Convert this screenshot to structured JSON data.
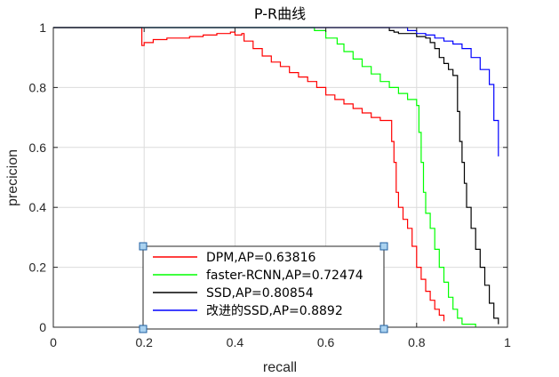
{
  "chart_data": {
    "type": "line",
    "title": "P-R曲线",
    "xlabel": "recall",
    "ylabel": "precicion",
    "xlim": [
      0,
      1
    ],
    "ylim": [
      0,
      1
    ],
    "xticks": [
      0,
      0.2,
      0.4,
      0.6,
      0.8,
      1
    ],
    "xtick_labels": [
      "0",
      "0.2",
      "0.4",
      "0.6",
      "0.8",
      "1"
    ],
    "yticks": [
      0,
      0.2,
      0.4,
      0.6,
      0.8,
      1
    ],
    "ytick_labels": [
      "0",
      "0.2",
      "0.4",
      "0.6",
      "0.8",
      "1"
    ],
    "grid": true,
    "legend_position": "bottom-center",
    "series": [
      {
        "name": "DPM,AP=0.63816",
        "color": "#ff0000",
        "points": [
          [
            0.0,
            1.0
          ],
          [
            0.195,
            1.0
          ],
          [
            0.195,
            0.94
          ],
          [
            0.2,
            0.94
          ],
          [
            0.2,
            0.95
          ],
          [
            0.22,
            0.95
          ],
          [
            0.22,
            0.96
          ],
          [
            0.25,
            0.96
          ],
          [
            0.25,
            0.965
          ],
          [
            0.3,
            0.965
          ],
          [
            0.3,
            0.97
          ],
          [
            0.33,
            0.97
          ],
          [
            0.33,
            0.975
          ],
          [
            0.36,
            0.975
          ],
          [
            0.36,
            0.98
          ],
          [
            0.39,
            0.98
          ],
          [
            0.39,
            0.985
          ],
          [
            0.4,
            0.985
          ],
          [
            0.4,
            0.975
          ],
          [
            0.415,
            0.975
          ],
          [
            0.415,
            0.98
          ],
          [
            0.42,
            0.98
          ],
          [
            0.42,
            0.955
          ],
          [
            0.44,
            0.955
          ],
          [
            0.44,
            0.93
          ],
          [
            0.46,
            0.93
          ],
          [
            0.46,
            0.905
          ],
          [
            0.48,
            0.905
          ],
          [
            0.48,
            0.885
          ],
          [
            0.5,
            0.885
          ],
          [
            0.5,
            0.87
          ],
          [
            0.52,
            0.87
          ],
          [
            0.52,
            0.85
          ],
          [
            0.54,
            0.85
          ],
          [
            0.54,
            0.835
          ],
          [
            0.56,
            0.835
          ],
          [
            0.56,
            0.82
          ],
          [
            0.58,
            0.82
          ],
          [
            0.58,
            0.8
          ],
          [
            0.6,
            0.8
          ],
          [
            0.6,
            0.775
          ],
          [
            0.62,
            0.775
          ],
          [
            0.62,
            0.76
          ],
          [
            0.64,
            0.76
          ],
          [
            0.64,
            0.745
          ],
          [
            0.66,
            0.745
          ],
          [
            0.66,
            0.73
          ],
          [
            0.68,
            0.73
          ],
          [
            0.68,
            0.715
          ],
          [
            0.7,
            0.715
          ],
          [
            0.7,
            0.7
          ],
          [
            0.72,
            0.7
          ],
          [
            0.72,
            0.69
          ],
          [
            0.74,
            0.69
          ],
          [
            0.74,
            0.69
          ],
          [
            0.745,
            0.69
          ],
          [
            0.745,
            0.62
          ],
          [
            0.75,
            0.62
          ],
          [
            0.75,
            0.55
          ],
          [
            0.755,
            0.55
          ],
          [
            0.755,
            0.45
          ],
          [
            0.76,
            0.45
          ],
          [
            0.76,
            0.4
          ],
          [
            0.77,
            0.4
          ],
          [
            0.77,
            0.36
          ],
          [
            0.78,
            0.36
          ],
          [
            0.78,
            0.33
          ],
          [
            0.79,
            0.33
          ],
          [
            0.79,
            0.27
          ],
          [
            0.8,
            0.27
          ],
          [
            0.8,
            0.2
          ],
          [
            0.81,
            0.2
          ],
          [
            0.81,
            0.16
          ],
          [
            0.82,
            0.16
          ],
          [
            0.82,
            0.12
          ],
          [
            0.83,
            0.12
          ],
          [
            0.83,
            0.09
          ],
          [
            0.84,
            0.09
          ],
          [
            0.84,
            0.06
          ],
          [
            0.85,
            0.06
          ],
          [
            0.85,
            0.04
          ],
          [
            0.86,
            0.04
          ],
          [
            0.86,
            0.02
          ]
        ]
      },
      {
        "name": "faster-RCNN,AP=0.72474",
        "color": "#00ff00",
        "points": [
          [
            0.0,
            1.0
          ],
          [
            0.575,
            1.0
          ],
          [
            0.575,
            0.99
          ],
          [
            0.6,
            0.99
          ],
          [
            0.6,
            0.965
          ],
          [
            0.625,
            0.965
          ],
          [
            0.625,
            0.945
          ],
          [
            0.64,
            0.945
          ],
          [
            0.64,
            0.92
          ],
          [
            0.66,
            0.92
          ],
          [
            0.66,
            0.895
          ],
          [
            0.68,
            0.895
          ],
          [
            0.68,
            0.87
          ],
          [
            0.7,
            0.87
          ],
          [
            0.7,
            0.845
          ],
          [
            0.72,
            0.845
          ],
          [
            0.72,
            0.82
          ],
          [
            0.74,
            0.82
          ],
          [
            0.74,
            0.8
          ],
          [
            0.76,
            0.8
          ],
          [
            0.76,
            0.78
          ],
          [
            0.78,
            0.78
          ],
          [
            0.78,
            0.76
          ],
          [
            0.8,
            0.76
          ],
          [
            0.8,
            0.74
          ],
          [
            0.805,
            0.74
          ],
          [
            0.805,
            0.65
          ],
          [
            0.81,
            0.65
          ],
          [
            0.81,
            0.55
          ],
          [
            0.815,
            0.55
          ],
          [
            0.815,
            0.45
          ],
          [
            0.82,
            0.45
          ],
          [
            0.82,
            0.38
          ],
          [
            0.83,
            0.38
          ],
          [
            0.83,
            0.33
          ],
          [
            0.84,
            0.33
          ],
          [
            0.84,
            0.26
          ],
          [
            0.85,
            0.26
          ],
          [
            0.85,
            0.2
          ],
          [
            0.86,
            0.2
          ],
          [
            0.86,
            0.15
          ],
          [
            0.87,
            0.15
          ],
          [
            0.87,
            0.1
          ],
          [
            0.88,
            0.1
          ],
          [
            0.88,
            0.06
          ],
          [
            0.89,
            0.06
          ],
          [
            0.89,
            0.03
          ],
          [
            0.9,
            0.03
          ],
          [
            0.9,
            0.01
          ],
          [
            0.93,
            0.01
          ],
          [
            0.93,
            0.0
          ]
        ]
      },
      {
        "name": "SSD,AP=0.80854",
        "color": "#000000",
        "points": [
          [
            0.0,
            1.0
          ],
          [
            0.74,
            1.0
          ],
          [
            0.74,
            0.99
          ],
          [
            0.75,
            0.99
          ],
          [
            0.75,
            0.985
          ],
          [
            0.76,
            0.985
          ],
          [
            0.76,
            0.98
          ],
          [
            0.8,
            0.98
          ],
          [
            0.8,
            0.97
          ],
          [
            0.82,
            0.97
          ],
          [
            0.82,
            0.965
          ],
          [
            0.83,
            0.965
          ],
          [
            0.83,
            0.95
          ],
          [
            0.84,
            0.95
          ],
          [
            0.84,
            0.93
          ],
          [
            0.85,
            0.93
          ],
          [
            0.85,
            0.9
          ],
          [
            0.86,
            0.9
          ],
          [
            0.86,
            0.88
          ],
          [
            0.87,
            0.88
          ],
          [
            0.87,
            0.86
          ],
          [
            0.88,
            0.86
          ],
          [
            0.88,
            0.84
          ],
          [
            0.89,
            0.84
          ],
          [
            0.89,
            0.72
          ],
          [
            0.895,
            0.72
          ],
          [
            0.895,
            0.62
          ],
          [
            0.9,
            0.62
          ],
          [
            0.9,
            0.55
          ],
          [
            0.905,
            0.55
          ],
          [
            0.905,
            0.48
          ],
          [
            0.91,
            0.48
          ],
          [
            0.91,
            0.4
          ],
          [
            0.92,
            0.4
          ],
          [
            0.92,
            0.33
          ],
          [
            0.93,
            0.33
          ],
          [
            0.93,
            0.26
          ],
          [
            0.94,
            0.26
          ],
          [
            0.94,
            0.2
          ],
          [
            0.95,
            0.2
          ],
          [
            0.95,
            0.14
          ],
          [
            0.96,
            0.14
          ],
          [
            0.96,
            0.08
          ],
          [
            0.97,
            0.08
          ],
          [
            0.97,
            0.03
          ],
          [
            0.98,
            0.03
          ],
          [
            0.98,
            0.01
          ]
        ]
      },
      {
        "name": "改进的SSD,AP=0.8892",
        "color": "#0000ff",
        "points": [
          [
            0.0,
            1.0
          ],
          [
            0.78,
            1.0
          ],
          [
            0.78,
            0.99
          ],
          [
            0.8,
            0.99
          ],
          [
            0.8,
            0.98
          ],
          [
            0.82,
            0.98
          ],
          [
            0.82,
            0.975
          ],
          [
            0.84,
            0.975
          ],
          [
            0.84,
            0.965
          ],
          [
            0.86,
            0.965
          ],
          [
            0.86,
            0.955
          ],
          [
            0.88,
            0.955
          ],
          [
            0.88,
            0.945
          ],
          [
            0.9,
            0.945
          ],
          [
            0.9,
            0.93
          ],
          [
            0.92,
            0.93
          ],
          [
            0.92,
            0.9
          ],
          [
            0.94,
            0.9
          ],
          [
            0.94,
            0.86
          ],
          [
            0.96,
            0.86
          ],
          [
            0.96,
            0.81
          ],
          [
            0.97,
            0.81
          ],
          [
            0.97,
            0.69
          ],
          [
            0.98,
            0.69
          ],
          [
            0.98,
            0.57
          ]
        ]
      }
    ]
  }
}
